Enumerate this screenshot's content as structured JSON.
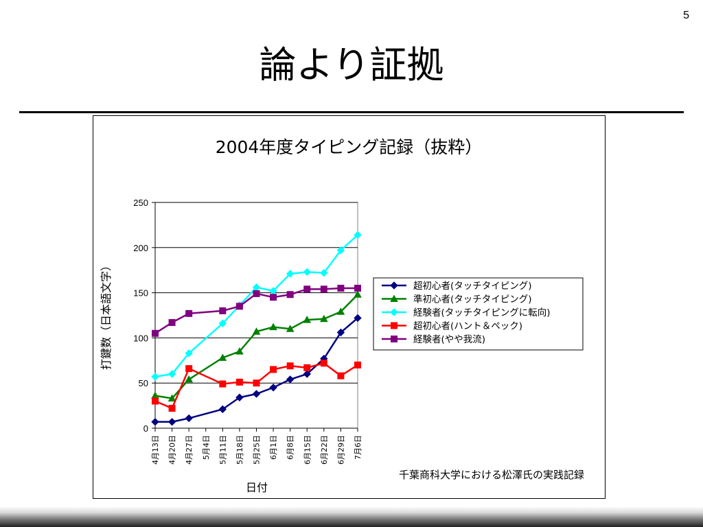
{
  "slide": {
    "page_number": "5",
    "title": "論より証拠"
  },
  "chart_data": {
    "type": "line",
    "title": "2004年度タイピング記録（抜粋）",
    "xlabel": "日付",
    "ylabel": "打鍵数（日本語文字）",
    "ylim": [
      0,
      250
    ],
    "yticks": [
      0,
      50,
      100,
      150,
      200,
      250
    ],
    "grid": true,
    "legend_position": "right",
    "categories": [
      "4月13日",
      "4月20日",
      "4月27日",
      "5月4日",
      "5月11日",
      "5月18日",
      "5月25日",
      "6月1日",
      "6月8日",
      "6月15日",
      "6月22日",
      "6月29日",
      "7月6日"
    ],
    "source_note": "千葉商科大学における松澤氏の実践記録",
    "series": [
      {
        "name": "超初心者(タッチタイピング)",
        "color": "#000080",
        "marker": "diamond",
        "values": [
          7,
          7,
          11,
          null,
          21,
          34,
          38,
          45,
          54,
          60,
          77,
          106,
          122
        ]
      },
      {
        "name": "準初心者(タッチタイピング)",
        "color": "#008000",
        "marker": "triangle",
        "values": [
          36,
          33,
          54,
          null,
          78,
          85,
          107,
          112,
          110,
          120,
          121,
          129,
          148
        ]
      },
      {
        "name": "経験者(タッチタイピングに転向)",
        "color": "#00ffff",
        "marker": "diamond",
        "values": [
          57,
          60,
          83,
          null,
          116,
          136,
          156,
          152,
          171,
          173,
          172,
          197,
          214
        ]
      },
      {
        "name": "超初心者(ハント＆ペック)",
        "color": "#ff0000",
        "marker": "square",
        "values": [
          30,
          22,
          66,
          null,
          49,
          51,
          50,
          65,
          69,
          67,
          72,
          58,
          70
        ]
      },
      {
        "name": "経験者(やや我流)",
        "color": "#800080",
        "marker": "square",
        "values": [
          105,
          117,
          127,
          null,
          130,
          135,
          149,
          145,
          148,
          154,
          154,
          155,
          155
        ]
      }
    ]
  }
}
